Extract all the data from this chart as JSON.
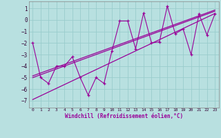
{
  "x": [
    0,
    1,
    2,
    3,
    4,
    5,
    6,
    7,
    8,
    9,
    10,
    11,
    12,
    13,
    14,
    15,
    16,
    17,
    18,
    19,
    20,
    21,
    22,
    23
  ],
  "y": [
    -2,
    -5,
    -5.5,
    -4,
    -4,
    -3.2,
    -5,
    -6.5,
    -5,
    -5.5,
    -2.7,
    -0.1,
    -0.1,
    -2.5,
    0.6,
    -2,
    -1.9,
    1.2,
    -1.2,
    -0.8,
    -3,
    0.5,
    -1.3,
    0.5
  ],
  "reg_lines": [
    [
      [
        0,
        -6.9
      ],
      [
        23,
        0.55
      ]
    ],
    [
      [
        0,
        -5.0
      ],
      [
        23,
        0.75
      ]
    ],
    [
      [
        0,
        -4.85
      ],
      [
        23,
        0.85
      ]
    ]
  ],
  "line_color": "#990099",
  "bg_color": "#b8e0e0",
  "grid_color": "#99cccc",
  "xlabel": "Windchill (Refroidissement éolien,°C)",
  "yticks": [
    1,
    0,
    -1,
    -2,
    -3,
    -4,
    -5,
    -6,
    -7
  ],
  "xticks": [
    0,
    1,
    2,
    3,
    4,
    5,
    6,
    7,
    8,
    9,
    10,
    11,
    12,
    13,
    14,
    15,
    16,
    17,
    18,
    19,
    20,
    21,
    22,
    23
  ],
  "ylim": [
    -7.6,
    1.6
  ],
  "xlim": [
    -0.5,
    23.5
  ]
}
